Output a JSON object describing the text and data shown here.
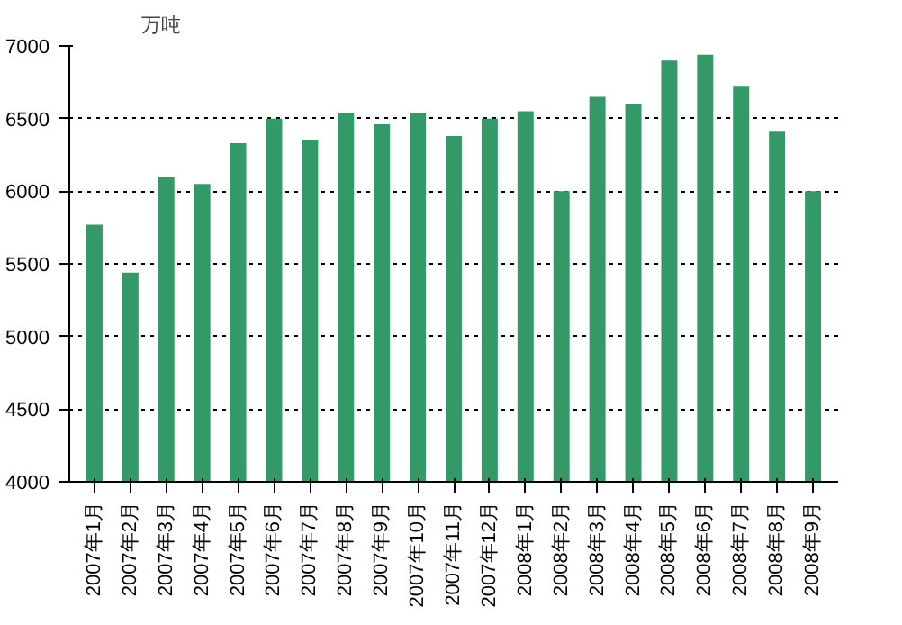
{
  "chart_data": {
    "type": "bar",
    "ylabel": "万吨",
    "categories": [
      "2007年1月",
      "2007年2月",
      "2007年3月",
      "2007年4月",
      "2007年5月",
      "2007年6月",
      "2007年7月",
      "2007年8月",
      "2007年9月",
      "2007年10月",
      "2007年11月",
      "2007年12月",
      "2008年1月",
      "2008年2月",
      "2008年3月",
      "2008年4月",
      "2008年5月",
      "2008年6月",
      "2008年7月",
      "2008年8月",
      "2008年9月"
    ],
    "values": [
      5770,
      5440,
      6100,
      6050,
      6330,
      6500,
      6350,
      6540,
      6460,
      6540,
      6380,
      6500,
      6550,
      6000,
      6650,
      6600,
      6900,
      6940,
      6720,
      6410,
      6000
    ],
    "color": "#339966",
    "ylim": [
      4000,
      7000
    ],
    "yticks": [
      4000,
      4500,
      5000,
      5500,
      6000,
      6500,
      7000
    ],
    "grid": "y"
  }
}
